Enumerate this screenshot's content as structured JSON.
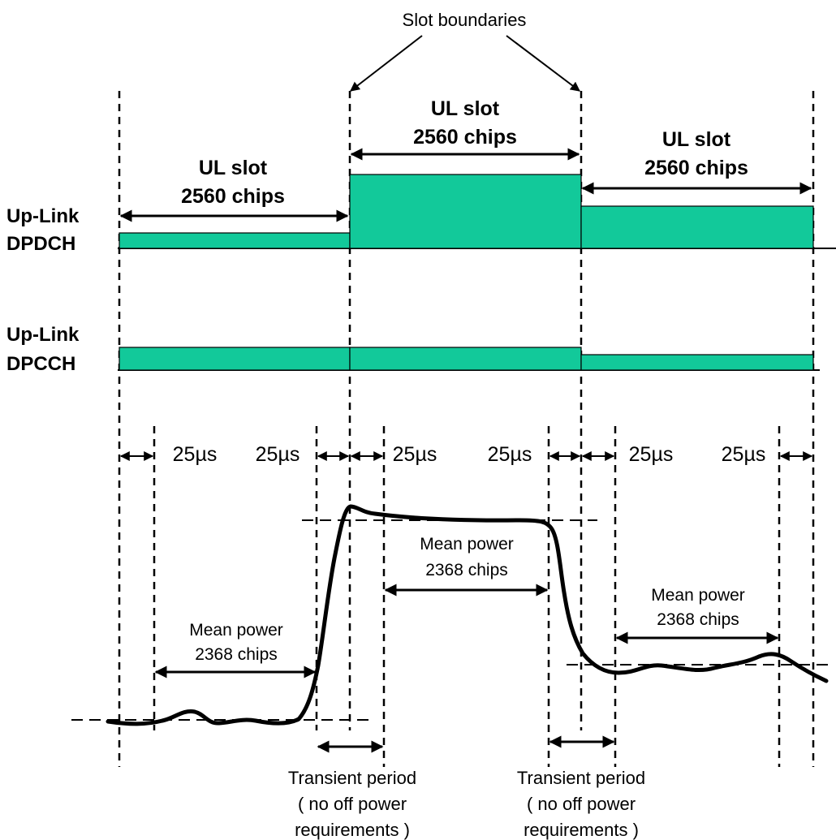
{
  "title": "Slot boundaries",
  "channels": [
    {
      "label_line1": "Up-Link",
      "label_line2": "DPDCH"
    },
    {
      "label_line1": "Up-Link",
      "label_line2": "DPCCH"
    }
  ],
  "slots": [
    {
      "label_line1": "UL slot",
      "label_line2": "2560 chips"
    },
    {
      "label_line1": "UL slot",
      "label_line2": "2560 chips"
    },
    {
      "label_line1": "UL slot",
      "label_line2": "2560 chips"
    }
  ],
  "guard_label": "25µs",
  "mean_power": [
    {
      "line1": "Mean power",
      "line2": "2368 chips"
    },
    {
      "line1": "Mean power",
      "line2": "2368 chips"
    },
    {
      "line1": "Mean power",
      "line2": "2368 chips"
    }
  ],
  "transient": [
    {
      "line1": "Transient period",
      "line2": "( no off power",
      "line3": "requirements )"
    },
    {
      "line1": "Transient period",
      "line2": "( no off power",
      "line3": "requirements )"
    }
  ],
  "colors": {
    "bar_fill": "#12c99a",
    "line": "#000000",
    "background": "#ffffff"
  }
}
